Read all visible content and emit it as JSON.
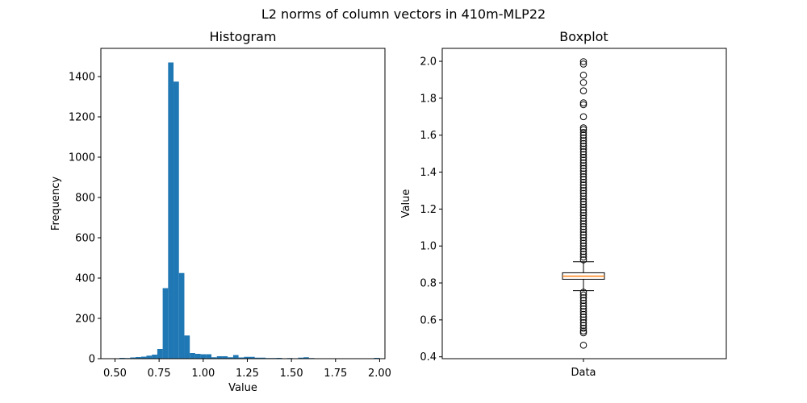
{
  "figure": {
    "suptitle": "L2 norms of column vectors in 410m-MLP22"
  },
  "chart_data": [
    {
      "type": "bar",
      "title": "Histogram",
      "xlabel": "Value",
      "ylabel": "Frequency",
      "xlim": [
        0.42,
        2.03
      ],
      "ylim": [
        0,
        1540
      ],
      "xticks": [
        0.5,
        0.75,
        1.0,
        1.25,
        1.5,
        1.75,
        2.0
      ],
      "xtick_labels": [
        "0.50",
        "0.75",
        "1.00",
        "1.25",
        "1.50",
        "1.75",
        "2.00"
      ],
      "yticks": [
        0,
        200,
        400,
        600,
        800,
        1000,
        1200,
        1400
      ],
      "ytick_labels": [
        "0",
        "200",
        "400",
        "600",
        "800",
        "1000",
        "1200",
        "1400"
      ],
      "bin_edges": [
        0.4634,
        0.4941,
        0.5248,
        0.5555,
        0.5862,
        0.6169,
        0.6476,
        0.6783,
        0.709,
        0.7397,
        0.7704,
        0.8011,
        0.8318,
        0.8625,
        0.8932,
        0.9239,
        0.9546,
        0.9853,
        1.016,
        1.0467,
        1.0774,
        1.1081,
        1.1388,
        1.1695,
        1.2002,
        1.2309,
        1.2616,
        1.2923,
        1.323,
        1.3537,
        1.3844,
        1.4151,
        1.4458,
        1.4765,
        1.5072,
        1.5379,
        1.5686,
        1.5993,
        1.63,
        1.6607,
        1.6914,
        1.7221,
        1.7528,
        1.7835,
        1.8142,
        1.8449,
        1.8756,
        1.9063,
        1.937,
        1.9677,
        1.9984
      ],
      "values": [
        1,
        0,
        4,
        3,
        6,
        8,
        10,
        15,
        20,
        48,
        350,
        1470,
        1375,
        425,
        115,
        28,
        24,
        22,
        22,
        7,
        12,
        12,
        7,
        18,
        6,
        9,
        9,
        5,
        5,
        3,
        3,
        4,
        2,
        3,
        2,
        5,
        7,
        3,
        1,
        1,
        1,
        1,
        1,
        1,
        1,
        1,
        1,
        1,
        1,
        4
      ],
      "color": "#1f77b4"
    },
    {
      "type": "box",
      "title": "Boxplot",
      "xlabel": "",
      "ylabel": "Value",
      "category": "Data",
      "ylim": [
        0.39,
        2.07
      ],
      "yticks": [
        0.4,
        0.6,
        0.8,
        1.0,
        1.2,
        1.4,
        1.6,
        1.8,
        2.0
      ],
      "ytick_labels": [
        "0.4",
        "0.6",
        "0.8",
        "1.0",
        "1.2",
        "1.4",
        "1.6",
        "1.8",
        "2.0"
      ],
      "q1": 0.82,
      "median": 0.837,
      "q3": 0.855,
      "whisker_low": 0.758,
      "whisker_high": 0.915,
      "outliers": [
        0.463,
        0.53,
        0.54,
        0.555,
        0.57,
        0.585,
        0.6,
        0.615,
        0.63,
        0.645,
        0.66,
        0.675,
        0.69,
        0.705,
        0.72,
        0.735,
        0.75,
        0.925,
        0.94,
        0.955,
        0.97,
        0.985,
        1.0,
        1.015,
        1.03,
        1.045,
        1.06,
        1.075,
        1.09,
        1.105,
        1.12,
        1.135,
        1.15,
        1.165,
        1.18,
        1.195,
        1.21,
        1.225,
        1.24,
        1.255,
        1.27,
        1.285,
        1.3,
        1.315,
        1.33,
        1.345,
        1.36,
        1.375,
        1.39,
        1.405,
        1.42,
        1.435,
        1.45,
        1.465,
        1.48,
        1.495,
        1.51,
        1.525,
        1.54,
        1.555,
        1.57,
        1.585,
        1.6,
        1.615,
        1.63,
        1.64,
        1.7,
        1.765,
        1.775,
        1.84,
        1.885,
        1.925,
        1.985,
        1.998
      ],
      "median_color": "#ff7f0e"
    }
  ]
}
